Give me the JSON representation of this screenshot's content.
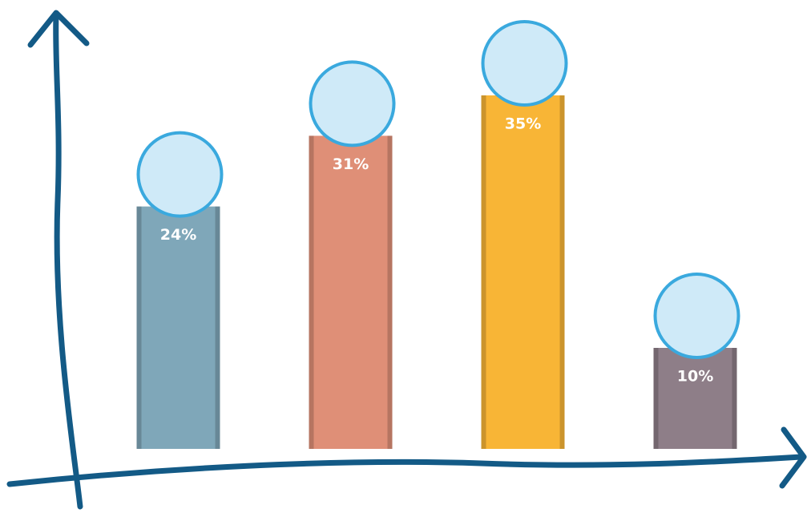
{
  "chart_data": {
    "type": "bar",
    "categories": [
      null,
      null,
      null,
      null
    ],
    "values": [
      24,
      31,
      35,
      10
    ],
    "value_labels": [
      "24%",
      "31%",
      "35%",
      "10%"
    ],
    "colors": [
      "#7fa7b9",
      "#df8f77",
      "#f8b536",
      "#8e7e88"
    ],
    "ylim": [
      0,
      40
    ]
  }
}
